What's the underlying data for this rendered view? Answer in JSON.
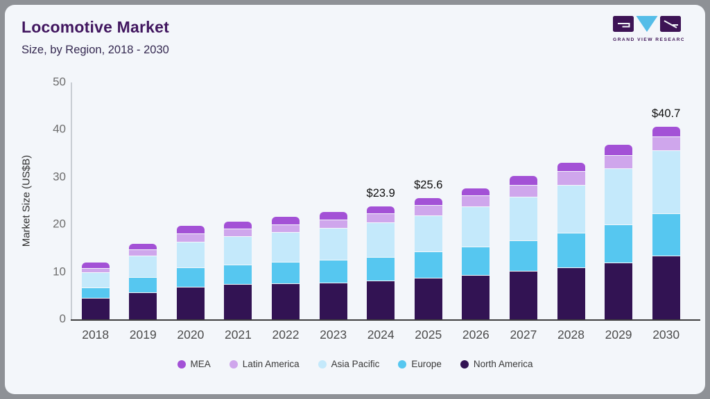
{
  "header": {
    "title": "Locomotive Market",
    "subtitle": "Size, by Region, 2018 - 2030"
  },
  "logo": {
    "name": "grand-view-research-logo",
    "caption": "GRAND VIEW RESEARCH",
    "dark_color": "#3d1355",
    "accent_color": "#55bde8"
  },
  "chart_data": {
    "type": "bar",
    "stacked": true,
    "title": "Locomotive Market Size, by Region, 2018 - 2030",
    "xlabel": "",
    "ylabel": "Market Size (US$B)",
    "ylim": [
      0,
      50
    ],
    "yticks": [
      0,
      10,
      20,
      30,
      40,
      50
    ],
    "grid": false,
    "legend_position": "bottom",
    "legend_order": [
      "MEA",
      "Latin America",
      "Asia Pacific",
      "Europe",
      "North America"
    ],
    "categories": [
      "2018",
      "2019",
      "2020",
      "2021",
      "2022",
      "2023",
      "2024",
      "2025",
      "2026",
      "2027",
      "2028",
      "2029",
      "2030"
    ],
    "series": [
      {
        "name": "North America",
        "color": "#321353",
        "values": [
          4.5,
          5.7,
          6.8,
          7.4,
          7.6,
          7.7,
          8.2,
          8.7,
          9.3,
          10.2,
          11.0,
          12.0,
          13.4
        ]
      },
      {
        "name": "Europe",
        "color": "#56c7f0",
        "values": [
          2.2,
          3.2,
          4.1,
          4.1,
          4.5,
          4.8,
          5.0,
          5.6,
          6.0,
          6.4,
          7.2,
          8.0,
          9.0
        ]
      },
      {
        "name": "Asia Pacific",
        "color": "#c4e9fb",
        "values": [
          3.3,
          4.5,
          5.5,
          6.1,
          6.3,
          6.8,
          7.3,
          7.7,
          8.6,
          9.3,
          10.2,
          11.9,
          13.3
        ]
      },
      {
        "name": "Latin America",
        "color": "#cfa6ec",
        "values": [
          0.8,
          1.3,
          1.8,
          1.6,
          1.6,
          1.8,
          1.8,
          2.1,
          2.2,
          2.5,
          2.9,
          2.8,
          2.9
        ]
      },
      {
        "name": "MEA",
        "color": "#a351d6",
        "values": [
          1.2,
          1.3,
          1.5,
          1.4,
          1.6,
          1.5,
          1.6,
          1.5,
          1.6,
          1.8,
          1.8,
          2.1,
          2.1
        ]
      }
    ],
    "annotations": {
      "2024": "$23.9",
      "2025": "$25.6",
      "2030": "$40.7"
    }
  }
}
